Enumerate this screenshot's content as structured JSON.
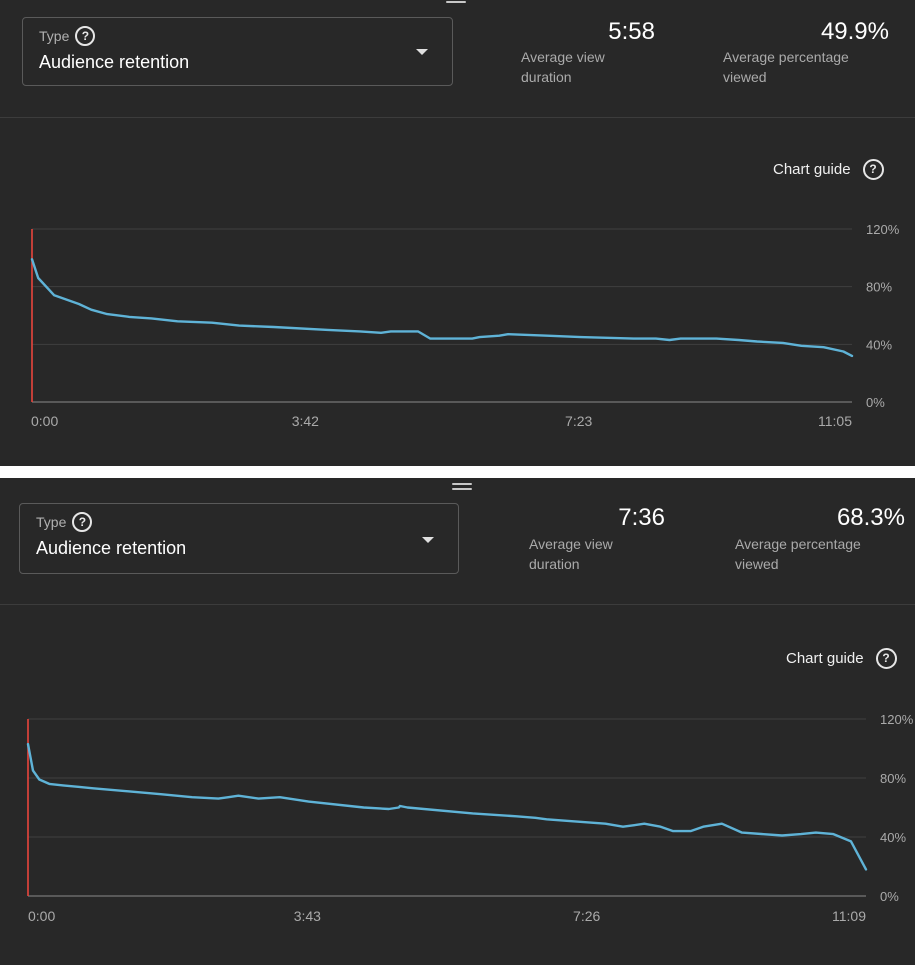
{
  "panels": [
    {
      "type_select": {
        "label": "Type",
        "value": "Audience retention"
      },
      "metrics": [
        {
          "value": "5:58",
          "label": "Average view duration"
        },
        {
          "value": "49.9%",
          "label": "Average percentage viewed"
        }
      ],
      "chart_guide": {
        "label": "Chart guide"
      }
    },
    {
      "type_select": {
        "label": "Type",
        "value": "Audience retention"
      },
      "metrics": [
        {
          "value": "7:36",
          "label": "Average view duration"
        },
        {
          "value": "68.3%",
          "label": "Average percentage viewed"
        }
      ],
      "chart_guide": {
        "label": "Chart guide"
      }
    }
  ],
  "chart_data": [
    {
      "type": "line",
      "title": "",
      "xlabel": "",
      "ylabel": "",
      "x_unit": "seconds",
      "x_range": [
        0,
        665
      ],
      "ylim": [
        0,
        120
      ],
      "x_tick_labels": [
        "0:00",
        "3:42",
        "7:23",
        "11:05"
      ],
      "y_tick_labels": [
        "0%",
        "40%",
        "80%",
        "120%"
      ],
      "grid": true,
      "series": [
        {
          "color": "#5fb3d7",
          "x": [
            0,
            5,
            18,
            38,
            48,
            61,
            79,
            97,
            118,
            146,
            168,
            196,
            240,
            266,
            283,
            291,
            303,
            313,
            323,
            357,
            363,
            379,
            386,
            418,
            445,
            488,
            506,
            517,
            526,
            555,
            573,
            588,
            609,
            624,
            642,
            658,
            665
          ],
          "y": [
            99,
            86,
            74,
            68,
            64,
            61,
            59,
            58,
            56,
            55,
            53,
            52,
            50,
            49,
            48,
            49,
            49,
            49,
            44,
            44,
            45,
            46,
            47,
            46,
            45,
            44,
            44,
            43,
            44,
            44,
            43,
            42,
            41,
            39,
            38,
            35,
            32
          ]
        }
      ]
    },
    {
      "type": "line",
      "title": "",
      "xlabel": "",
      "ylabel": "",
      "x_unit": "seconds",
      "x_range": [
        0,
        669
      ],
      "ylim": [
        0,
        120
      ],
      "x_tick_labels": [
        "0:00",
        "3:43",
        "7:26",
        "11:09"
      ],
      "y_tick_labels": [
        "0%",
        "40%",
        "80%",
        "120%"
      ],
      "grid": true,
      "series": [
        {
          "color": "#5fb3d7",
          "x": [
            0,
            4,
            9,
            17,
            28,
            40,
            52,
            80,
            106,
            131,
            152,
            160,
            168,
            184,
            201,
            224,
            268,
            288,
            296,
            297,
            303,
            355,
            390,
            405,
            414,
            430,
            461,
            475,
            484,
            492,
            505,
            515,
            529,
            539,
            554,
            570,
            602,
            617,
            629,
            643,
            657,
            669
          ],
          "y": [
            103,
            85,
            79,
            76,
            75,
            74,
            73,
            71,
            69,
            67,
            66,
            67,
            68,
            66,
            67,
            64,
            60,
            59,
            60,
            61,
            60,
            56,
            54,
            53,
            52,
            51,
            49,
            47,
            48,
            49,
            47,
            44,
            44,
            47,
            49,
            43,
            41,
            42,
            43,
            42,
            37,
            18
          ]
        }
      ]
    }
  ]
}
